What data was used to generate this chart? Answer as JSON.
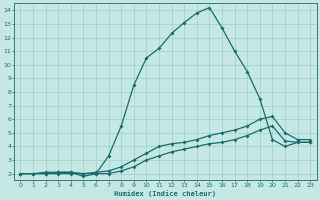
{
  "xlabel": "Humidex (Indice chaleur)",
  "xlim": [
    -0.5,
    23.5
  ],
  "ylim": [
    1.5,
    14.5
  ],
  "xticks": [
    0,
    1,
    2,
    3,
    4,
    5,
    6,
    7,
    8,
    9,
    10,
    11,
    12,
    13,
    14,
    15,
    16,
    17,
    18,
    19,
    20,
    21,
    22,
    23
  ],
  "yticks": [
    2,
    3,
    4,
    5,
    6,
    7,
    8,
    9,
    10,
    11,
    12,
    13,
    14
  ],
  "bg_color": "#c5e8e5",
  "line_color": "#1a6b6b",
  "grid_color": "#9ecece",
  "line1_x": [
    0,
    1,
    2,
    3,
    4,
    5,
    6,
    7,
    8,
    9,
    10,
    11,
    12,
    13,
    14,
    15,
    16,
    17,
    18,
    19,
    20,
    21,
    22,
    23
  ],
  "line1_y": [
    2.0,
    2.0,
    2.1,
    2.1,
    2.1,
    1.8,
    2.0,
    3.3,
    5.5,
    8.5,
    10.5,
    11.2,
    12.3,
    13.1,
    13.8,
    14.2,
    12.7,
    11.0,
    9.5,
    7.5,
    4.5,
    4.0,
    4.3,
    4.3
  ],
  "line2_x": [
    0,
    1,
    2,
    3,
    4,
    5,
    6,
    7,
    8,
    9,
    10,
    11,
    12,
    13,
    14,
    15,
    16,
    17,
    18,
    19,
    20,
    21,
    22,
    23
  ],
  "line2_y": [
    2.0,
    2.0,
    2.0,
    2.1,
    2.1,
    2.0,
    2.1,
    2.2,
    2.5,
    3.0,
    3.5,
    4.0,
    4.2,
    4.3,
    4.5,
    4.8,
    5.0,
    5.2,
    5.5,
    6.0,
    6.2,
    5.0,
    4.5,
    4.5
  ],
  "line3_x": [
    0,
    1,
    2,
    3,
    4,
    5,
    6,
    7,
    8,
    9,
    10,
    11,
    12,
    13,
    14,
    15,
    16,
    17,
    18,
    19,
    20,
    21,
    22,
    23
  ],
  "line3_y": [
    2.0,
    2.0,
    2.0,
    2.0,
    2.0,
    2.0,
    2.0,
    2.0,
    2.2,
    2.5,
    3.0,
    3.3,
    3.6,
    3.8,
    4.0,
    4.2,
    4.3,
    4.5,
    4.8,
    5.2,
    5.5,
    4.4,
    4.3,
    4.3
  ]
}
